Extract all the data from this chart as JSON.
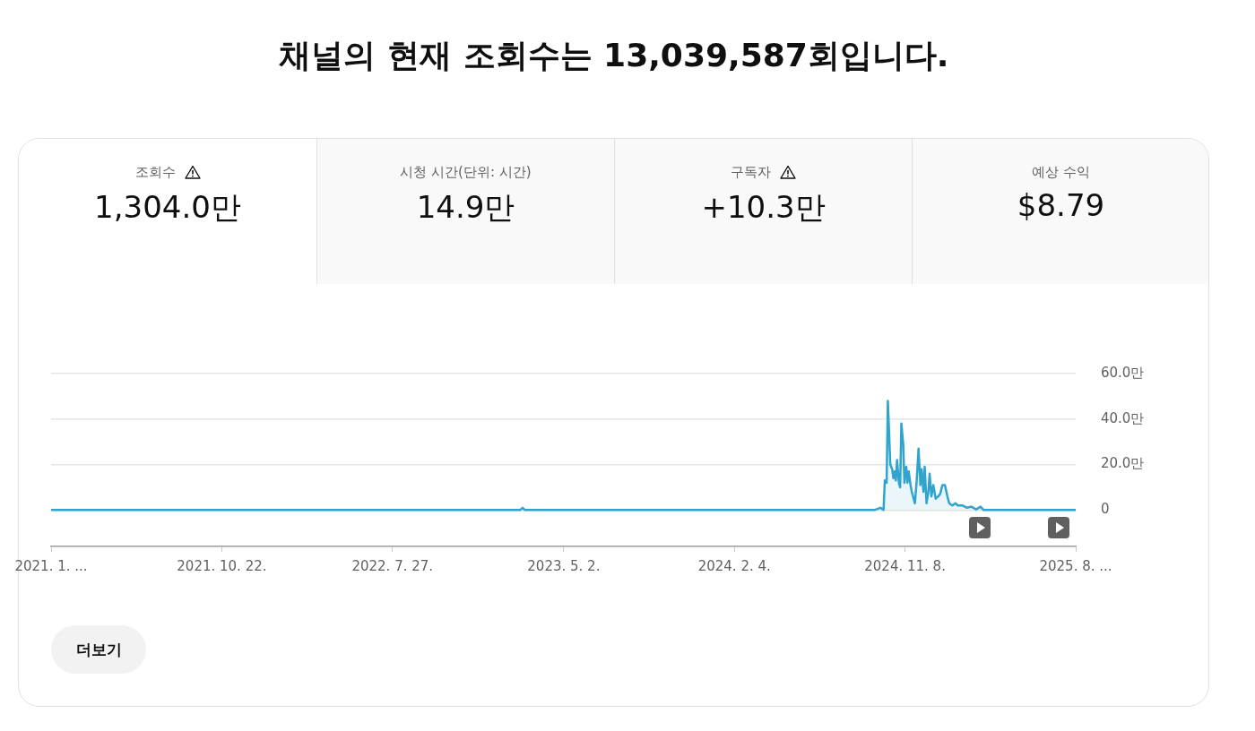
{
  "chart_data": {
    "type": "area",
    "title": "채널의 현재 조회수는 13,039,587회입니다.",
    "annotations": [
      "조회수",
      "1,304.0만",
      "시청 시간(단위: 시간)",
      "14.9만",
      "구독자",
      "+10.3만",
      "예상 수익",
      "$8.79",
      "더보기"
    ],
    "x": [
      "2021-01-17",
      "2023-02-20",
      "2023-02-24",
      "2023-02-28",
      "2024-09-19",
      "2024-09-29",
      "2024-10-04",
      "2024-10-06",
      "2024-10-09",
      "2024-10-11",
      "2024-10-15",
      "2024-10-18",
      "2024-10-20",
      "2024-10-22",
      "2024-10-24",
      "2024-10-26",
      "2024-10-29",
      "2024-10-31",
      "2024-11-02",
      "2024-11-05",
      "2024-11-07",
      "2024-11-10",
      "2024-11-12",
      "2024-11-14",
      "2024-11-17",
      "2024-11-19",
      "2024-11-24",
      "2024-11-27",
      "2024-11-30",
      "2024-12-03",
      "2024-12-05",
      "2024-12-08",
      "2024-12-10",
      "2024-12-13",
      "2024-12-16",
      "2024-12-18",
      "2024-12-21",
      "2024-12-24",
      "2024-12-28",
      "2025-01-01",
      "2025-01-04",
      "2025-01-08",
      "2025-01-12",
      "2025-01-16",
      "2025-01-19",
      "2025-01-24",
      "2025-01-29",
      "2025-02-02",
      "2025-02-10",
      "2025-02-17",
      "2025-02-24",
      "2025-03-04",
      "2025-03-11",
      "2025-03-16",
      "2025-08-13"
    ],
    "series": [
      {
        "color": "#2fa4cf",
        "values": [
          0,
          0,
          1,
          0,
          0,
          1,
          0,
          13,
          12,
          48,
          20,
          18,
          14,
          17,
          13,
          22,
          12,
          10,
          38,
          29,
          12,
          19,
          12,
          17,
          11,
          8,
          3,
          13,
          27,
          11,
          18,
          8,
          19,
          3,
          8,
          16,
          6,
          11,
          5,
          6,
          7,
          11,
          11,
          6,
          3,
          2,
          3,
          2,
          2,
          1,
          1.5,
          0.3,
          1.5,
          0,
          0
        ]
      }
    ],
    "xlim": [
      "2021-01-17",
      "2025-08-13"
    ],
    "xticks": [
      {
        "value": "2021-01-17",
        "label": "2021. 1. ..."
      },
      {
        "value": "2021-10-22",
        "label": "2021. 10. 22."
      },
      {
        "value": "2022-07-27",
        "label": "2022. 7. 27."
      },
      {
        "value": "2023-05-02",
        "label": "2023. 5. 2."
      },
      {
        "value": "2024-02-04",
        "label": "2024. 2. 4."
      },
      {
        "value": "2024-11-08",
        "label": "2024. 11. 8."
      },
      {
        "value": "2025-08-13",
        "label": "2025. 8. ..."
      }
    ],
    "ylim": [
      -16,
      60
    ],
    "yticks": [
      0,
      {
        "value": 20,
        "label": "20.0만"
      },
      {
        "value": 40,
        "label": "40.0만"
      },
      {
        "value": 60,
        "label": "60.0만"
      }
    ],
    "grid": "y",
    "marker": "none"
  }
}
